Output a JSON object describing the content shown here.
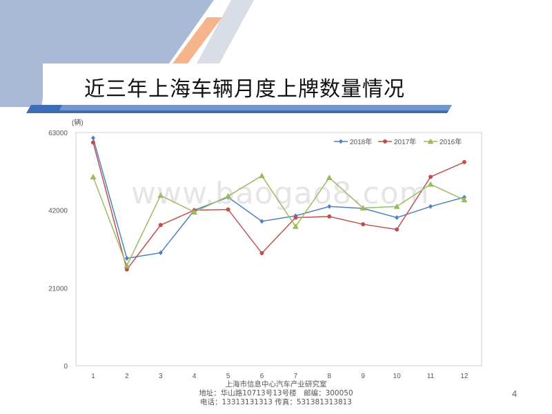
{
  "slide": {
    "title": "近三年上海车辆月度上牌数量情况",
    "watermark": "www.baogao8.com",
    "footer": {
      "line1": "上海市信息中心汽车产业研究室",
      "line2": "地址：华山路10713号13号楼　邮编：300050",
      "line3": "电话：13313131313  传真：531381313813"
    },
    "page_number": "4"
  },
  "chart_data": {
    "type": "line",
    "unit": "(辆)",
    "categories": [
      "1",
      "2",
      "3",
      "4",
      "5",
      "6",
      "7",
      "8",
      "9",
      "10",
      "11",
      "12"
    ],
    "yticks": [
      "0",
      "21000",
      "42000",
      "63000"
    ],
    "ylim": [
      0,
      63000
    ],
    "grid": false,
    "legend_position": "top-right",
    "series": [
      {
        "name": "2018年",
        "color": "#4e7fc4",
        "marker": "diamond",
        "values": [
          61500,
          29000,
          30500,
          42000,
          45500,
          39000,
          40500,
          43000,
          42500,
          40000,
          43000,
          45500
        ]
      },
      {
        "name": "2017年",
        "color": "#c0504d",
        "marker": "circle",
        "values": [
          60300,
          26000,
          38000,
          42000,
          42200,
          30400,
          40000,
          40300,
          38200,
          36800,
          51000,
          55000
        ]
      },
      {
        "name": "2016年",
        "color": "#9bbb59",
        "marker": "triangle",
        "values": [
          51000,
          27000,
          46000,
          41500,
          45800,
          51300,
          37600,
          50800,
          42600,
          43000,
          49000,
          44800
        ]
      }
    ]
  }
}
